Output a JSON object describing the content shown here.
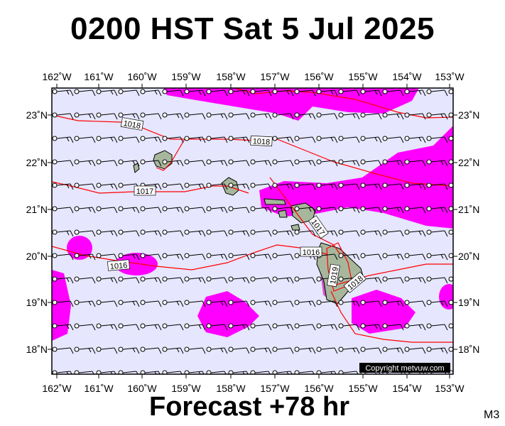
{
  "title": "0200 HST Sat 5 Jul 2025",
  "forecast": "Forecast +78 hr",
  "model_code": "M3",
  "copyright": "Copyright metvuw.com",
  "longitude_ticks": [
    "162˚W",
    "161˚W",
    "160˚W",
    "159˚W",
    "158˚W",
    "157˚W",
    "156˚W",
    "155˚W",
    "154˚W",
    "153˚W"
  ],
  "latitude_ticks_left": [
    "23˚N",
    "22˚N",
    "21˚N",
    "20˚N",
    "19˚N",
    "18˚N"
  ],
  "latitude_ticks_right": [
    "23˚N",
    "22˚N",
    "21˚N",
    "20˚N",
    "19˚N",
    "18˚N"
  ],
  "isobar_labels": [
    "1018",
    "1018",
    "1017",
    "1016",
    "1016",
    "1017",
    "1019",
    "1018"
  ],
  "colors": {
    "ocean": "#e6e6ff",
    "rain": "#ff00ff",
    "isobar": "#ff0000",
    "land": "#a7b79c"
  }
}
